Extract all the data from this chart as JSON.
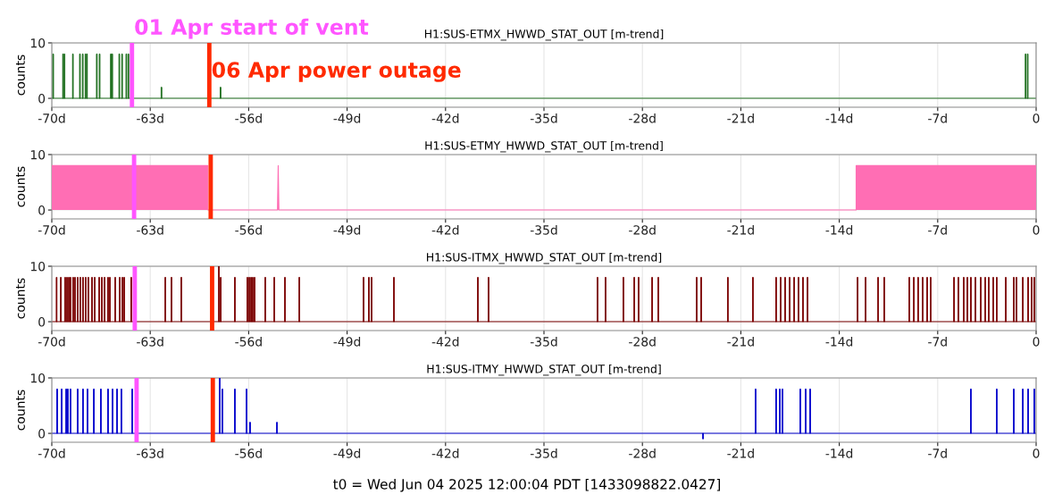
{
  "chart_data": [
    {
      "type": "bar",
      "title": "H1:SUS-ETMX_HWWD_STAT_OUT [m-trend]",
      "ylabel": "counts",
      "series": [
        {
          "color": "#1e6e1e",
          "x": [
            -69.9,
            -69.2,
            -69.1,
            -68.5,
            -68.0,
            -67.8,
            -67.6,
            -67.5,
            -66.8,
            -66.6,
            -65.8,
            -65.7,
            -65.2,
            -65.0,
            -64.7,
            -64.55,
            -62.2,
            -58.0,
            -0.75,
            -0.6
          ],
          "values": [
            8,
            8,
            8,
            8,
            8,
            8,
            8,
            8,
            8,
            8,
            8,
            8,
            8,
            8,
            8,
            8,
            2,
            2,
            8,
            8
          ]
        }
      ],
      "xlim": [
        -70,
        0
      ],
      "xticks": [
        {
          "value": -70,
          "label": "-70d"
        },
        {
          "value": -63,
          "label": "-63d"
        },
        {
          "value": -56,
          "label": "-56d"
        },
        {
          "value": -49,
          "label": "-49d"
        },
        {
          "value": -42,
          "label": "-42d"
        },
        {
          "value": -35,
          "label": "-35d"
        },
        {
          "value": -28,
          "label": "-28d"
        },
        {
          "value": -21,
          "label": "-21d"
        },
        {
          "value": -14,
          "label": "-14d"
        },
        {
          "value": -7,
          "label": "-7d"
        },
        0
      ],
      "ylim": [
        -1.6,
        10
      ],
      "yticks": [
        0,
        10
      ],
      "grid": true,
      "ref_lines": [
        {
          "axis": "y",
          "value": 0,
          "color": "#1e6e1e"
        },
        {
          "axis": "x",
          "value": -64.3,
          "color": "#ff55ff",
          "label": "01 Apr start of vent"
        },
        {
          "axis": "x",
          "value": -58.8,
          "color": "#ff2a00",
          "label": "06 Apr power outage"
        }
      ]
    },
    {
      "type": "area",
      "title": "H1:SUS-ETMY_HWWD_STAT_OUT [m-trend]",
      "ylabel": "counts",
      "series": [
        {
          "color": "#ff6eb4",
          "x": [
            -70,
            -58.9,
            -58.9,
            -53.95,
            -53.9,
            -53.85,
            -12.8,
            -12.8,
            0
          ],
          "values": [
            8,
            8,
            0,
            0,
            8,
            0,
            0,
            8,
            8
          ]
        }
      ],
      "xlim": [
        -70,
        0
      ],
      "xticks": [
        {
          "value": -70,
          "label": "-70d"
        },
        {
          "value": -63,
          "label": "-63d"
        },
        {
          "value": -56,
          "label": "-56d"
        },
        {
          "value": -49,
          "label": "-49d"
        },
        {
          "value": -42,
          "label": "-42d"
        },
        {
          "value": -35,
          "label": "-35d"
        },
        {
          "value": -28,
          "label": "-28d"
        },
        {
          "value": -21,
          "label": "-21d"
        },
        {
          "value": -14,
          "label": "-14d"
        },
        {
          "value": -7,
          "label": "-7d"
        },
        0
      ],
      "ylim": [
        -1.6,
        10
      ],
      "yticks": [
        0,
        10
      ],
      "grid": true,
      "ref_lines": [
        {
          "axis": "x",
          "value": -64.15,
          "color": "#ff55ff"
        },
        {
          "axis": "x",
          "value": -58.7,
          "color": "#ff2a00"
        }
      ]
    },
    {
      "type": "bar",
      "title": "H1:SUS-ITMX_HWWD_STAT_OUT [m-trend]",
      "ylabel": "counts",
      "series": [
        {
          "color": "#7b0000",
          "x": [
            -69.66,
            -69.36,
            -69.05,
            -68.92,
            -68.79,
            -68.67,
            -68.48,
            -68.35,
            -68.16,
            -67.97,
            -67.78,
            -67.59,
            -67.4,
            -67.14,
            -66.95,
            -66.63,
            -66.44,
            -66.25,
            -66.0,
            -65.87,
            -65.49,
            -65.17,
            -64.98,
            -64.85,
            -64.35,
            -61.93,
            -61.49,
            -60.79,
            -58.12,
            -57.99,
            -56.98,
            -56.09,
            -55.96,
            -55.83,
            -55.71,
            -55.58,
            -54.82,
            -54.18,
            -53.42,
            -52.4,
            -47.83,
            -47.45,
            -47.26,
            -45.67,
            -39.7,
            -38.94,
            -31.19,
            -30.62,
            -29.35,
            -28.58,
            -28.27,
            -27.31,
            -26.87,
            -24.14,
            -23.82,
            -21.92,
            -20.14,
            -18.49,
            -18.17,
            -17.85,
            -17.53,
            -17.21,
            -16.9,
            -16.58,
            -16.26,
            -12.7,
            -12.13,
            -11.24,
            -10.8,
            -9.02,
            -8.7,
            -8.39,
            -8.07,
            -7.75,
            -7.5,
            -5.84,
            -5.53,
            -5.15,
            -4.89,
            -4.64,
            -4.32,
            -3.94,
            -3.62,
            -3.37,
            -3.05,
            -2.8,
            -2.16,
            -1.59,
            -1.4,
            -0.95,
            -0.57,
            -0.32,
            -0.13
          ],
          "values": [
            8,
            8,
            8,
            8,
            8,
            8,
            8,
            8,
            8,
            8,
            8,
            8,
            8,
            8,
            8,
            8,
            8,
            8,
            8,
            8,
            8,
            8,
            8,
            8,
            8,
            8,
            8,
            8,
            10,
            8,
            8,
            8,
            8,
            8,
            8,
            8,
            8,
            8,
            8,
            8,
            8,
            8,
            8,
            8,
            8,
            8,
            8,
            8,
            8,
            8,
            8,
            8,
            8,
            8,
            8,
            8,
            8,
            8,
            8,
            8,
            8,
            8,
            8,
            8,
            8,
            8,
            8,
            8,
            8,
            8,
            8,
            8,
            8,
            8,
            8,
            8,
            8,
            8,
            8,
            8,
            8,
            8,
            8,
            8,
            8,
            8,
            8,
            8,
            8,
            8,
            8,
            8,
            8
          ]
        }
      ],
      "xlim": [
        -70,
        0
      ],
      "xticks": [
        {
          "value": -70,
          "label": "-70d"
        },
        {
          "value": -63,
          "label": "-63d"
        },
        {
          "value": -56,
          "label": "-56d"
        },
        {
          "value": -49,
          "label": "-49d"
        },
        {
          "value": -42,
          "label": "-42d"
        },
        {
          "value": -35,
          "label": "-35d"
        },
        {
          "value": -28,
          "label": "-28d"
        },
        {
          "value": -21,
          "label": "-21d"
        },
        {
          "value": -14,
          "label": "-14d"
        },
        {
          "value": -7,
          "label": "-7d"
        },
        0
      ],
      "ylim": [
        -1.6,
        10
      ],
      "yticks": [
        0,
        10
      ],
      "grid": true,
      "ref_lines": [
        {
          "axis": "y",
          "value": 0,
          "color": "#7b0000"
        },
        {
          "axis": "x",
          "value": -64.1,
          "color": "#ff55ff"
        },
        {
          "axis": "x",
          "value": -58.6,
          "color": "#ff2a00"
        }
      ]
    },
    {
      "type": "bar",
      "title": "H1:SUS-ITMY_HWWD_STAT_OUT [m-trend]",
      "ylabel": "counts",
      "series": [
        {
          "color": "#0000cc",
          "x": [
            -69.62,
            -69.3,
            -68.98,
            -68.86,
            -68.67,
            -68.16,
            -67.78,
            -67.46,
            -67.01,
            -66.51,
            -66.0,
            -65.68,
            -65.36,
            -65.05,
            -64.28,
            -58.06,
            -57.87,
            -56.98,
            -56.15,
            -55.9,
            -53.99,
            -23.69,
            -19.95,
            -18.49,
            -18.23,
            -18.04,
            -16.77,
            -16.39,
            -16.07,
            -4.64,
            -2.8,
            -1.59,
            -0.95,
            -0.57,
            -0.13
          ],
          "values": [
            8,
            8,
            8,
            8,
            8,
            8,
            8,
            8,
            8,
            8,
            8,
            8,
            8,
            8,
            8,
            10,
            8,
            8,
            8,
            2,
            2,
            -1,
            8,
            8,
            8,
            8,
            8,
            8,
            8,
            8,
            8,
            8,
            8,
            8,
            8
          ]
        }
      ],
      "xlim": [
        -70,
        0
      ],
      "xticks": [
        {
          "value": -70,
          "label": "-70d"
        },
        {
          "value": -63,
          "label": "-63d"
        },
        {
          "value": -56,
          "label": "-56d"
        },
        {
          "value": -49,
          "label": "-49d"
        },
        {
          "value": -42,
          "label": "-42d"
        },
        {
          "value": -35,
          "label": "-35d"
        },
        {
          "value": -28,
          "label": "-28d"
        },
        {
          "value": -21,
          "label": "-21d"
        },
        {
          "value": -14,
          "label": "-14d"
        },
        {
          "value": -7,
          "label": "-7d"
        },
        0
      ],
      "ylim": [
        -1.6,
        10
      ],
      "yticks": [
        0,
        10
      ],
      "grid": true,
      "ref_lines": [
        {
          "axis": "y",
          "value": 0,
          "color": "#0000cc"
        },
        {
          "axis": "x",
          "value": -63.97,
          "color": "#ff55ff"
        },
        {
          "axis": "x",
          "value": -58.55,
          "color": "#ff2a00"
        }
      ],
      "annotations": [
        "t0 = Wed Jun 04 2025 12:00:04 PDT [1433098822.0427]"
      ]
    }
  ]
}
